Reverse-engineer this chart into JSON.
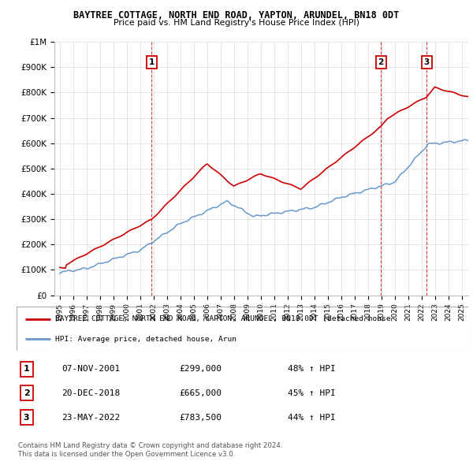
{
  "title": "BAYTREE COTTAGE, NORTH END ROAD, YAPTON, ARUNDEL, BN18 0DT",
  "subtitle": "Price paid vs. HM Land Registry's House Price Index (HPI)",
  "background_color": "#ffffff",
  "grid_color": "#e0e0e0",
  "ylim": [
    0,
    1000000
  ],
  "yticks": [
    0,
    100000,
    200000,
    300000,
    400000,
    500000,
    600000,
    700000,
    800000,
    900000,
    1000000
  ],
  "ytick_labels": [
    "£0",
    "£100K",
    "£200K",
    "£300K",
    "£400K",
    "£500K",
    "£600K",
    "£700K",
    "£800K",
    "£900K",
    "£1M"
  ],
  "red_line_color": "#cc0000",
  "blue_line_color": "#6699cc",
  "transactions": [
    {
      "num": 1,
      "date": "07-NOV-2001",
      "price": 299000,
      "year": 2001.85,
      "pct": "48%"
    },
    {
      "num": 2,
      "date": "20-DEC-2018",
      "price": 665000,
      "year": 2018.97,
      "pct": "45%"
    },
    {
      "num": 3,
      "date": "23-MAY-2022",
      "price": 783500,
      "year": 2022.39,
      "pct": "44%"
    }
  ],
  "legend_red_label": "BAYTREE COTTAGE, NORTH END ROAD, YAPTON, ARUNDEL, BN18 0DT (detached house",
  "legend_blue_label": "HPI: Average price, detached house, Arun",
  "footer1": "Contains HM Land Registry data © Crown copyright and database right 2024.",
  "footer2": "This data is licensed under the Open Government Licence v3.0.",
  "table_rows": [
    {
      "num": "1",
      "date": "07-NOV-2001",
      "price": "£299,000",
      "pct": "48% ↑ HPI"
    },
    {
      "num": "2",
      "date": "20-DEC-2018",
      "price": "£665,000",
      "pct": "45% ↑ HPI"
    },
    {
      "num": "3",
      "date": "23-MAY-2022",
      "price": "£783,500",
      "pct": "44% ↑ HPI"
    }
  ]
}
